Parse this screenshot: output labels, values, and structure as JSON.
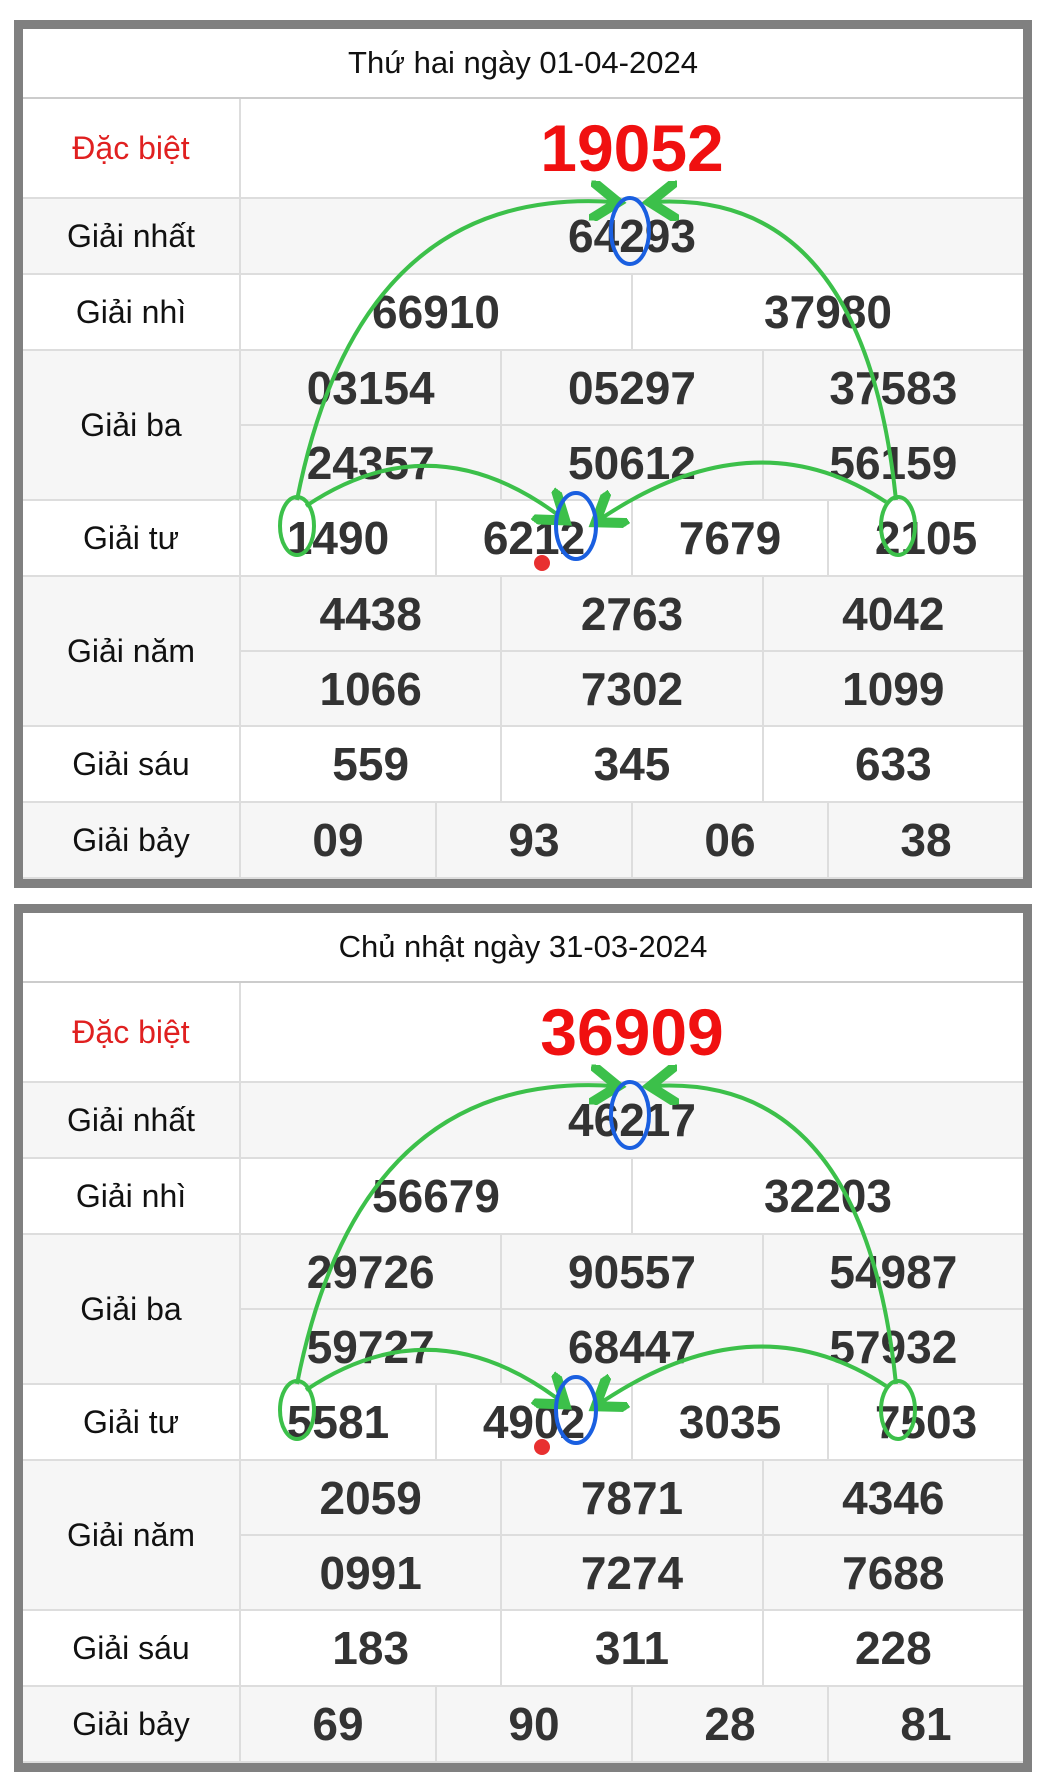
{
  "tables": [
    {
      "title": "Thứ hai ngày 01-04-2024",
      "labels": {
        "db": "Đặc biệt",
        "g1": "Giải nhất",
        "g2": "Giải nhì",
        "g3": "Giải ba",
        "g4": "Giải tư",
        "g5": "Giải năm",
        "g6": "Giải sáu",
        "g7": "Giải bảy"
      },
      "db": "19052",
      "g1": "64293",
      "g2": [
        "66910",
        "37980"
      ],
      "g3": [
        "03154",
        "05297",
        "37583",
        "24357",
        "50612",
        "56159"
      ],
      "g4": [
        "1490",
        "6212",
        "7679",
        "2105"
      ],
      "g5": [
        "4438",
        "2763",
        "4042",
        "1066",
        "7302",
        "1099"
      ],
      "g6": [
        "559",
        "345",
        "633"
      ],
      "g7": [
        "09",
        "93",
        "06",
        "38"
      ]
    },
    {
      "title": "Chủ nhật ngày 31-03-2024",
      "labels": {
        "db": "Đặc biệt",
        "g1": "Giải nhất",
        "g2": "Giải nhì",
        "g3": "Giải ba",
        "g4": "Giải tư",
        "g5": "Giải năm",
        "g6": "Giải sáu",
        "g7": "Giải bảy"
      },
      "db": "36909",
      "g1": "46217",
      "g2": [
        "56679",
        "32203"
      ],
      "g3": [
        "29726",
        "90557",
        "54987",
        "59727",
        "68447",
        "57932"
      ],
      "g4": [
        "5581",
        "4902",
        "3035",
        "7503"
      ],
      "g5": [
        "2059",
        "7871",
        "4346",
        "0991",
        "7274",
        "7688"
      ],
      "g6": [
        "183",
        "311",
        "228"
      ],
      "g7": [
        "69",
        "90",
        "28",
        "81"
      ]
    }
  ],
  "colors": {
    "special": "#f01010",
    "arrow": "#3cc04a",
    "circle_blue": "#1a5fe0",
    "dot": "#e83030"
  }
}
